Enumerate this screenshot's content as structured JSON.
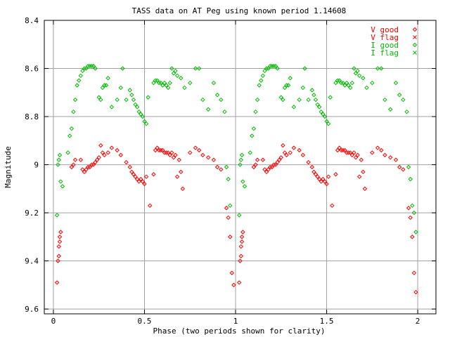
{
  "chart_data": {
    "type": "scatter",
    "title": "TASS data on AT Peg  using known period 1.14608",
    "xlabel": "Phase (two periods shown for clarity)",
    "ylabel": "Magnitude",
    "xlim": [
      -0.05,
      2.1
    ],
    "ylim": [
      8.4,
      9.62
    ],
    "y_inverted": true,
    "grid": true,
    "legend_position": "top-right",
    "x_ticks": [
      {
        "value": 0,
        "label": "0"
      },
      {
        "value": 0.5,
        "label": "0.5"
      },
      {
        "value": 1,
        "label": "1"
      },
      {
        "value": 1.5,
        "label": "1.5"
      },
      {
        "value": 2,
        "label": "2"
      }
    ],
    "y_ticks": [
      {
        "value": 8.4,
        "label": "8.4"
      },
      {
        "value": 8.6,
        "label": "8.6"
      },
      {
        "value": 8.8,
        "label": "8.8"
      },
      {
        "value": 9.0,
        "label": "9"
      },
      {
        "value": 9.2,
        "label": "9.2"
      },
      {
        "value": 9.4,
        "label": "9.4"
      },
      {
        "value": 9.6,
        "label": "9.6"
      }
    ],
    "series": [
      {
        "name": "V good",
        "color": "#ff0000",
        "marker": "diamond",
        "points": [
          [
            0.02,
            9.49
          ],
          [
            0.025,
            9.4
          ],
          [
            0.03,
            9.38
          ],
          [
            0.03,
            9.34
          ],
          [
            0.035,
            9.3
          ],
          [
            0.035,
            9.32
          ],
          [
            0.04,
            9.28
          ],
          [
            0.1,
            9.01
          ],
          [
            0.11,
            9.0
          ],
          [
            0.12,
            8.98
          ],
          [
            0.15,
            8.98
          ],
          [
            0.16,
            9.02
          ],
          [
            0.17,
            9.03
          ],
          [
            0.18,
            9.02
          ],
          [
            0.19,
            9.01
          ],
          [
            0.2,
            9.01
          ],
          [
            0.21,
            9.0
          ],
          [
            0.22,
            9.0
          ],
          [
            0.23,
            8.99
          ],
          [
            0.24,
            8.98
          ],
          [
            0.25,
            8.97
          ],
          [
            0.26,
            8.92
          ],
          [
            0.27,
            8.95
          ],
          [
            0.28,
            8.96
          ],
          [
            0.3,
            8.95
          ],
          [
            0.32,
            8.93
          ],
          [
            0.35,
            8.94
          ],
          [
            0.37,
            8.96
          ],
          [
            0.4,
            8.99
          ],
          [
            0.42,
            9.01
          ],
          [
            0.43,
            9.03
          ],
          [
            0.44,
            9.04
          ],
          [
            0.45,
            9.05
          ],
          [
            0.46,
            9.06
          ],
          [
            0.47,
            9.07
          ],
          [
            0.48,
            9.06
          ],
          [
            0.49,
            9.07
          ],
          [
            0.5,
            9.08
          ],
          [
            0.51,
            9.05
          ],
          [
            0.53,
            9.17
          ],
          [
            0.55,
            9.04
          ],
          [
            0.56,
            8.94
          ],
          [
            0.57,
            8.93
          ],
          [
            0.58,
            8.94
          ],
          [
            0.59,
            8.94
          ],
          [
            0.6,
            8.94
          ],
          [
            0.61,
            8.95
          ],
          [
            0.62,
            8.95
          ],
          [
            0.63,
            8.95
          ],
          [
            0.64,
            8.96
          ],
          [
            0.65,
            8.95
          ],
          [
            0.66,
            8.97
          ],
          [
            0.67,
            8.96
          ],
          [
            0.68,
            9.05
          ],
          [
            0.69,
            8.98
          ],
          [
            0.7,
            9.03
          ],
          [
            0.71,
            9.1
          ],
          [
            0.75,
            8.95
          ],
          [
            0.78,
            8.93
          ],
          [
            0.8,
            8.94
          ],
          [
            0.82,
            8.96
          ],
          [
            0.85,
            8.97
          ],
          [
            0.88,
            8.98
          ],
          [
            0.9,
            9.01
          ],
          [
            0.92,
            9.02
          ],
          [
            0.95,
            9.18
          ],
          [
            0.96,
            9.22
          ],
          [
            0.97,
            9.3
          ],
          [
            0.98,
            9.45
          ],
          [
            0.99,
            9.5
          ],
          [
            1.02,
            9.49
          ],
          [
            1.025,
            9.4
          ],
          [
            1.03,
            9.38
          ],
          [
            1.03,
            9.34
          ],
          [
            1.035,
            9.3
          ],
          [
            1.035,
            9.32
          ],
          [
            1.04,
            9.28
          ],
          [
            1.1,
            9.01
          ],
          [
            1.11,
            9.0
          ],
          [
            1.12,
            8.98
          ],
          [
            1.15,
            8.98
          ],
          [
            1.16,
            9.02
          ],
          [
            1.17,
            9.03
          ],
          [
            1.18,
            9.02
          ],
          [
            1.19,
            9.01
          ],
          [
            1.2,
            9.01
          ],
          [
            1.21,
            9.0
          ],
          [
            1.22,
            9.0
          ],
          [
            1.23,
            8.99
          ],
          [
            1.24,
            8.98
          ],
          [
            1.25,
            8.97
          ],
          [
            1.26,
            8.92
          ],
          [
            1.27,
            8.95
          ],
          [
            1.28,
            8.96
          ],
          [
            1.3,
            8.95
          ],
          [
            1.32,
            8.93
          ],
          [
            1.35,
            8.94
          ],
          [
            1.37,
            8.96
          ],
          [
            1.4,
            8.99
          ],
          [
            1.42,
            9.01
          ],
          [
            1.43,
            9.03
          ],
          [
            1.44,
            9.04
          ],
          [
            1.45,
            9.05
          ],
          [
            1.46,
            9.06
          ],
          [
            1.47,
            9.07
          ],
          [
            1.48,
            9.06
          ],
          [
            1.49,
            9.07
          ],
          [
            1.5,
            9.08
          ],
          [
            1.51,
            9.05
          ],
          [
            1.53,
            9.17
          ],
          [
            1.55,
            9.04
          ],
          [
            1.56,
            8.94
          ],
          [
            1.57,
            8.93
          ],
          [
            1.58,
            8.94
          ],
          [
            1.59,
            8.94
          ],
          [
            1.6,
            8.94
          ],
          [
            1.61,
            8.95
          ],
          [
            1.62,
            8.95
          ],
          [
            1.63,
            8.95
          ],
          [
            1.64,
            8.96
          ],
          [
            1.65,
            8.95
          ],
          [
            1.66,
            8.97
          ],
          [
            1.67,
            8.96
          ],
          [
            1.68,
            9.05
          ],
          [
            1.69,
            8.98
          ],
          [
            1.7,
            9.03
          ],
          [
            1.71,
            9.1
          ],
          [
            1.75,
            8.95
          ],
          [
            1.78,
            8.93
          ],
          [
            1.8,
            8.94
          ],
          [
            1.82,
            8.96
          ],
          [
            1.85,
            8.97
          ],
          [
            1.88,
            8.98
          ],
          [
            1.9,
            9.01
          ],
          [
            1.92,
            9.02
          ],
          [
            1.95,
            9.18
          ],
          [
            1.96,
            9.22
          ],
          [
            1.97,
            9.3
          ],
          [
            1.98,
            9.45
          ],
          [
            1.99,
            9.53
          ]
        ]
      },
      {
        "name": "V flag",
        "color": "#ff0000",
        "marker": "cross",
        "points": []
      },
      {
        "name": "I good",
        "color": "#00bb00",
        "marker": "diamond",
        "points": [
          [
            0.02,
            9.21
          ],
          [
            0.025,
            9.0
          ],
          [
            0.03,
            8.98
          ],
          [
            0.035,
            8.96
          ],
          [
            0.04,
            9.07
          ],
          [
            0.05,
            9.09
          ],
          [
            0.08,
            8.95
          ],
          [
            0.09,
            8.88
          ],
          [
            0.1,
            8.85
          ],
          [
            0.11,
            8.78
          ],
          [
            0.12,
            8.73
          ],
          [
            0.13,
            8.67
          ],
          [
            0.14,
            8.65
          ],
          [
            0.15,
            8.63
          ],
          [
            0.16,
            8.61
          ],
          [
            0.17,
            8.6
          ],
          [
            0.18,
            8.6
          ],
          [
            0.19,
            8.59
          ],
          [
            0.2,
            8.59
          ],
          [
            0.21,
            8.59
          ],
          [
            0.22,
            8.59
          ],
          [
            0.23,
            8.6
          ],
          [
            0.25,
            8.72
          ],
          [
            0.26,
            8.73
          ],
          [
            0.27,
            8.68
          ],
          [
            0.28,
            8.67
          ],
          [
            0.29,
            8.67
          ],
          [
            0.3,
            8.64
          ],
          [
            0.32,
            8.76
          ],
          [
            0.35,
            8.73
          ],
          [
            0.37,
            8.68
          ],
          [
            0.38,
            8.6
          ],
          [
            0.4,
            8.73
          ],
          [
            0.42,
            8.69
          ],
          [
            0.43,
            8.71
          ],
          [
            0.44,
            8.73
          ],
          [
            0.45,
            8.75
          ],
          [
            0.46,
            8.76
          ],
          [
            0.47,
            8.78
          ],
          [
            0.48,
            8.79
          ],
          [
            0.49,
            8.8
          ],
          [
            0.5,
            8.82
          ],
          [
            0.51,
            8.83
          ],
          [
            0.52,
            8.72
          ],
          [
            0.55,
            8.66
          ],
          [
            0.56,
            8.65
          ],
          [
            0.57,
            8.65
          ],
          [
            0.58,
            8.66
          ],
          [
            0.59,
            8.66
          ],
          [
            0.6,
            8.67
          ],
          [
            0.61,
            8.66
          ],
          [
            0.62,
            8.67
          ],
          [
            0.63,
            8.68
          ],
          [
            0.64,
            8.66
          ],
          [
            0.65,
            8.6
          ],
          [
            0.66,
            8.62
          ],
          [
            0.67,
            8.61
          ],
          [
            0.68,
            8.63
          ],
          [
            0.7,
            8.64
          ],
          [
            0.72,
            8.68
          ],
          [
            0.75,
            8.66
          ],
          [
            0.78,
            8.6
          ],
          [
            0.8,
            8.6
          ],
          [
            0.82,
            8.73
          ],
          [
            0.85,
            8.77
          ],
          [
            0.88,
            8.66
          ],
          [
            0.9,
            8.71
          ],
          [
            0.92,
            8.73
          ],
          [
            0.94,
            8.78
          ],
          [
            0.95,
            9.01
          ],
          [
            0.96,
            9.06
          ],
          [
            0.97,
            9.17
          ],
          [
            1.02,
            9.21
          ],
          [
            1.025,
            9.0
          ],
          [
            1.03,
            8.98
          ],
          [
            1.035,
            8.96
          ],
          [
            1.04,
            9.07
          ],
          [
            1.05,
            9.09
          ],
          [
            1.08,
            8.95
          ],
          [
            1.09,
            8.88
          ],
          [
            1.1,
            8.85
          ],
          [
            1.11,
            8.78
          ],
          [
            1.12,
            8.73
          ],
          [
            1.13,
            8.67
          ],
          [
            1.14,
            8.65
          ],
          [
            1.15,
            8.63
          ],
          [
            1.16,
            8.61
          ],
          [
            1.17,
            8.6
          ],
          [
            1.18,
            8.6
          ],
          [
            1.19,
            8.59
          ],
          [
            1.2,
            8.59
          ],
          [
            1.21,
            8.59
          ],
          [
            1.22,
            8.59
          ],
          [
            1.23,
            8.6
          ],
          [
            1.25,
            8.72
          ],
          [
            1.26,
            8.73
          ],
          [
            1.27,
            8.68
          ],
          [
            1.28,
            8.67
          ],
          [
            1.29,
            8.67
          ],
          [
            1.3,
            8.64
          ],
          [
            1.32,
            8.76
          ],
          [
            1.35,
            8.73
          ],
          [
            1.37,
            8.68
          ],
          [
            1.38,
            8.6
          ],
          [
            1.4,
            8.73
          ],
          [
            1.42,
            8.69
          ],
          [
            1.43,
            8.71
          ],
          [
            1.44,
            8.73
          ],
          [
            1.45,
            8.75
          ],
          [
            1.46,
            8.76
          ],
          [
            1.47,
            8.78
          ],
          [
            1.48,
            8.79
          ],
          [
            1.49,
            8.8
          ],
          [
            1.5,
            8.82
          ],
          [
            1.51,
            8.83
          ],
          [
            1.52,
            8.72
          ],
          [
            1.55,
            8.66
          ],
          [
            1.56,
            8.65
          ],
          [
            1.57,
            8.65
          ],
          [
            1.58,
            8.66
          ],
          [
            1.59,
            8.66
          ],
          [
            1.6,
            8.67
          ],
          [
            1.61,
            8.66
          ],
          [
            1.62,
            8.67
          ],
          [
            1.63,
            8.68
          ],
          [
            1.64,
            8.66
          ],
          [
            1.65,
            8.6
          ],
          [
            1.66,
            8.62
          ],
          [
            1.67,
            8.61
          ],
          [
            1.68,
            8.63
          ],
          [
            1.7,
            8.64
          ],
          [
            1.72,
            8.68
          ],
          [
            1.75,
            8.66
          ],
          [
            1.78,
            8.6
          ],
          [
            1.8,
            8.6
          ],
          [
            1.82,
            8.73
          ],
          [
            1.85,
            8.77
          ],
          [
            1.88,
            8.66
          ],
          [
            1.9,
            8.71
          ],
          [
            1.92,
            8.73
          ],
          [
            1.94,
            8.78
          ],
          [
            1.95,
            9.01
          ],
          [
            1.96,
            9.06
          ],
          [
            1.97,
            9.17
          ],
          [
            1.98,
            9.2
          ],
          [
            1.99,
            9.28
          ]
        ]
      },
      {
        "name": "I flag",
        "color": "#00bb00",
        "marker": "cross",
        "points": []
      }
    ]
  }
}
